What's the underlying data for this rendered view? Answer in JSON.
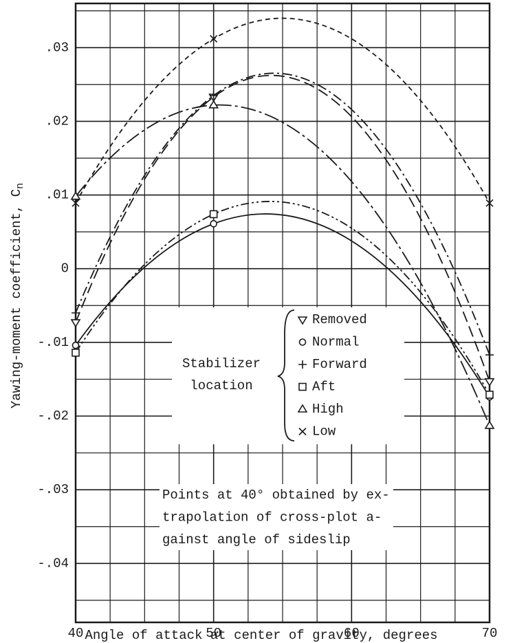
{
  "chart_data": {
    "type": "line",
    "xlabel": "Angle of attack at center of gravity, degrees",
    "ylabel": "Yawing-moment coefficient, C",
    "ylabel_subscript": "n",
    "x": [
      40,
      50,
      70
    ],
    "xlim": [
      40,
      70
    ],
    "xticks": [
      40,
      50,
      60,
      70
    ],
    "minor_xticks": [
      42.5,
      45,
      47.5,
      52.5,
      55,
      57.5,
      62.5,
      65,
      67.5
    ],
    "ylim": [
      -0.048,
      0.036
    ],
    "yticks": [
      {
        "value": 0.03,
        "label": ".03"
      },
      {
        "value": 0.02,
        "label": ".02"
      },
      {
        "value": 0.01,
        "label": ".01"
      },
      0,
      {
        "value": -0.01,
        "label": "-.01"
      },
      {
        "value": -0.02,
        "label": "-.02"
      },
      {
        "value": -0.03,
        "label": "-.03"
      },
      {
        "value": -0.04,
        "label": "-.04"
      }
    ],
    "minor_yticks": [
      0.035,
      0.025,
      0.015,
      0.005,
      -0.005,
      -0.015,
      -0.025,
      -0.035,
      -0.045
    ],
    "grid": true,
    "color": "#1a1a1a",
    "legend_title": [
      "Stabilizer",
      "location"
    ],
    "annotation": [
      "Points at 40° obtained by ex-",
      "trapolation of cross-plot a-",
      "gainst angle of sideslip"
    ],
    "series": [
      {
        "name": "Removed",
        "marker": "triangle-down",
        "linestyle": "dashed",
        "values": [
          -0.0073,
          0.0233,
          -0.0153
        ]
      },
      {
        "name": "Normal",
        "marker": "circle",
        "linestyle": "solid",
        "values": [
          -0.0104,
          0.0061,
          -0.0174
        ]
      },
      {
        "name": "Forward",
        "marker": "plus",
        "linestyle": "dashdot",
        "values": [
          -0.006,
          0.0235,
          -0.0117
        ]
      },
      {
        "name": "Aft",
        "marker": "square",
        "linestyle": "dashdotdot",
        "values": [
          -0.0114,
          0.0074,
          -0.0171
        ]
      },
      {
        "name": "High",
        "marker": "triangle-up",
        "linestyle": "longdashdot",
        "values": [
          0.0098,
          0.0222,
          -0.0213
        ]
      },
      {
        "name": "Low",
        "marker": "cross",
        "linestyle": "shortdash",
        "values": [
          0.0089,
          0.0312,
          0.0089
        ]
      }
    ]
  }
}
